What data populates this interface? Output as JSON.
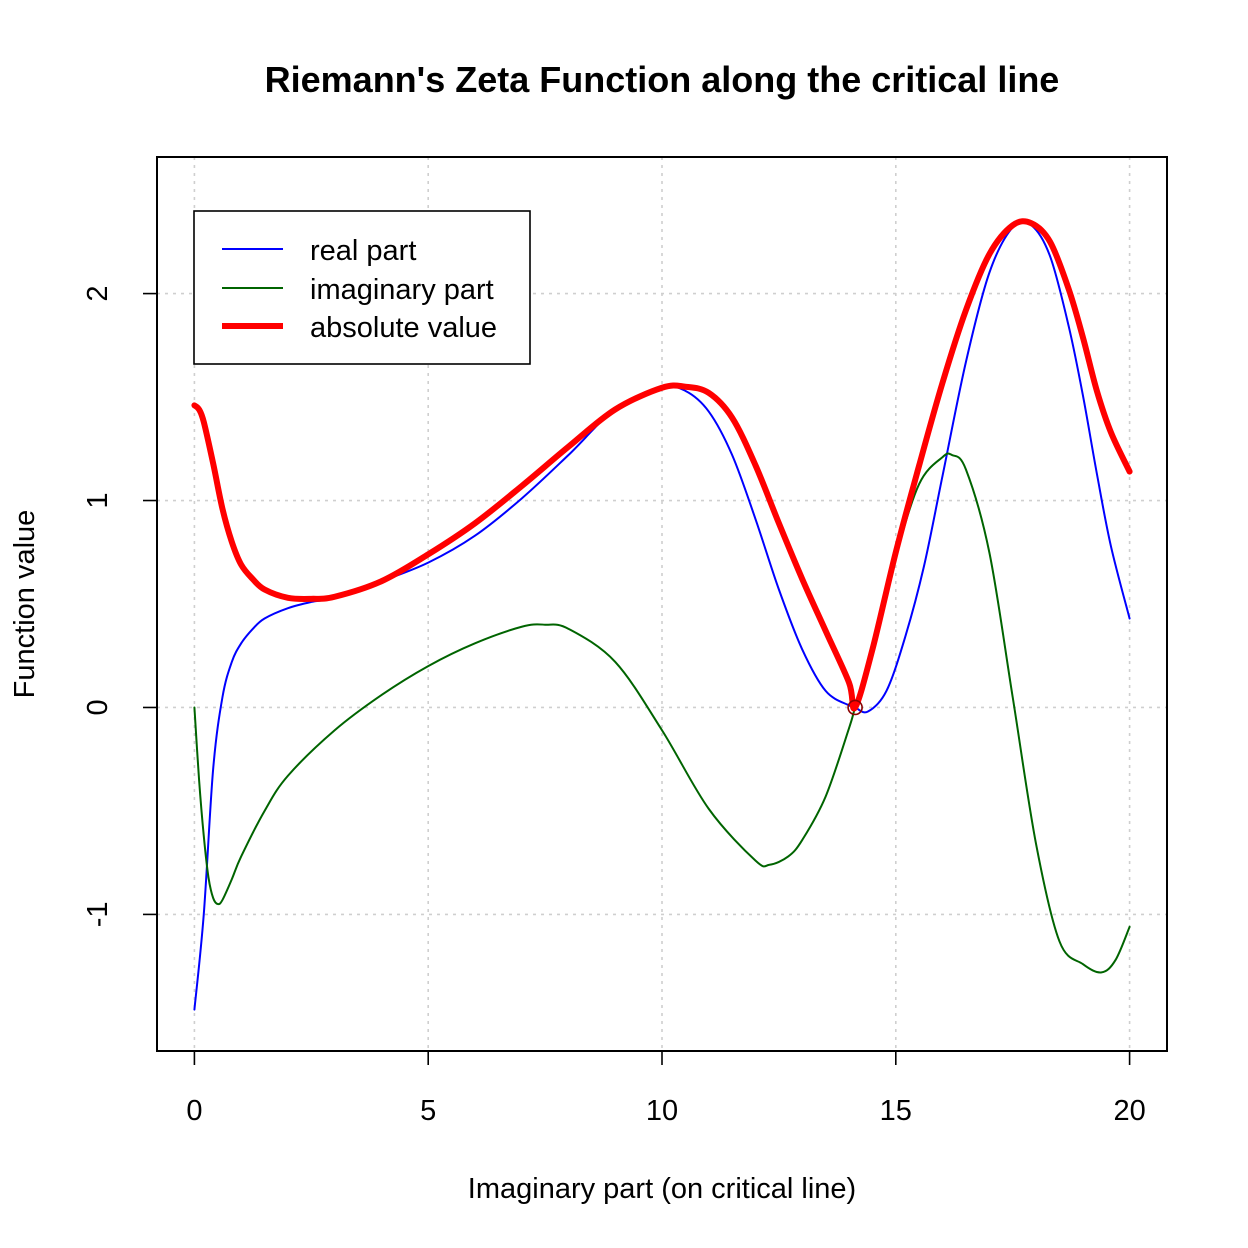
{
  "chart_data": {
    "type": "line",
    "title": "Riemann's Zeta Function along the critical line",
    "xlabel": "Imaginary part (on critical line)",
    "ylabel": "Function value",
    "xlim": [
      -0.8,
      20.8
    ],
    "ylim": [
      -1.66,
      2.66
    ],
    "x_ticks": [
      0,
      5,
      10,
      15,
      20
    ],
    "x_tick_labels": [
      "0",
      "5",
      "10",
      "15",
      "20"
    ],
    "y_ticks": [
      -1,
      0,
      1,
      2
    ],
    "y_tick_labels": [
      "-1",
      "0",
      "1",
      "2"
    ],
    "grid": true,
    "legend_position": "top-left",
    "series": [
      {
        "name": "real part",
        "color": "#0000ff",
        "line_width": 1,
        "x": [
          0,
          0.2,
          0.4,
          0.6,
          0.8,
          1,
          1.25,
          1.5,
          2,
          2.5,
          3,
          4,
          5,
          6,
          7,
          8,
          9,
          10,
          10.5,
          11,
          11.5,
          12,
          12.5,
          13,
          13.5,
          14,
          14.13,
          14.4,
          14.8,
          15.2,
          15.6,
          16,
          16.5,
          17,
          17.5,
          17.9,
          18.3,
          18.7,
          19,
          19.3,
          19.6,
          20
        ],
        "y": [
          -1.46,
          -1.0,
          -0.3,
          0.05,
          0.22,
          0.31,
          0.38,
          0.43,
          0.48,
          0.51,
          0.53,
          0.61,
          0.7,
          0.83,
          1.01,
          1.22,
          1.44,
          1.545,
          1.53,
          1.43,
          1.22,
          0.91,
          0.57,
          0.28,
          0.08,
          0.01,
          0.0,
          -0.02,
          0.08,
          0.34,
          0.68,
          1.12,
          1.67,
          2.1,
          2.32,
          2.33,
          2.18,
          1.84,
          1.51,
          1.13,
          0.78,
          0.43
        ]
      },
      {
        "name": "imaginary part",
        "color": "#006400",
        "line_width": 1,
        "x": [
          0,
          0.1,
          0.2,
          0.3,
          0.4,
          0.5,
          0.6,
          0.8,
          1,
          1.5,
          2,
          3,
          4,
          5,
          6,
          7,
          7.5,
          8,
          9,
          10,
          11,
          12,
          12.3,
          12.7,
          13,
          13.5,
          14,
          14.13,
          14.5,
          15,
          15.5,
          16,
          16.2,
          16.5,
          17,
          17.5,
          18,
          18.5,
          19,
          19.4,
          19.7,
          20
        ],
        "y": [
          0,
          -0.35,
          -0.62,
          -0.82,
          -0.92,
          -0.95,
          -0.93,
          -0.83,
          -0.72,
          -0.5,
          -0.33,
          -0.11,
          0.06,
          0.2,
          0.31,
          0.39,
          0.4,
          0.38,
          0.22,
          -0.11,
          -0.49,
          -0.74,
          -0.76,
          -0.72,
          -0.64,
          -0.43,
          -0.1,
          0.0,
          0.28,
          0.73,
          1.08,
          1.21,
          1.22,
          1.15,
          0.75,
          0.05,
          -0.66,
          -1.13,
          -1.24,
          -1.28,
          -1.22,
          -1.06
        ]
      },
      {
        "name": "absolute value",
        "color": "#ff0000",
        "line_width": 3,
        "x": [
          0,
          0.1,
          0.2,
          0.4,
          0.6,
          0.8,
          1,
          1.25,
          1.5,
          2,
          2.5,
          3,
          4,
          5,
          6,
          7,
          8,
          9,
          10,
          10.5,
          11,
          11.5,
          12,
          12.5,
          13,
          13.5,
          14,
          14.13,
          14.5,
          15,
          15.5,
          16,
          16.5,
          17,
          17.5,
          17.9,
          18.3,
          18.7,
          19,
          19.3,
          19.6,
          20
        ],
        "y": [
          1.46,
          1.44,
          1.38,
          1.18,
          0.96,
          0.8,
          0.69,
          0.62,
          0.57,
          0.53,
          0.525,
          0.535,
          0.61,
          0.74,
          0.89,
          1.07,
          1.26,
          1.44,
          1.545,
          1.55,
          1.52,
          1.4,
          1.17,
          0.89,
          0.62,
          0.37,
          0.12,
          0.0,
          0.28,
          0.75,
          1.17,
          1.57,
          1.92,
          2.19,
          2.33,
          2.34,
          2.25,
          2.02,
          1.79,
          1.53,
          1.33,
          1.14
        ]
      }
    ],
    "annotations": [
      {
        "type": "open-circle",
        "x": 14.13,
        "y": 0,
        "color": "#8b0000"
      }
    ]
  }
}
